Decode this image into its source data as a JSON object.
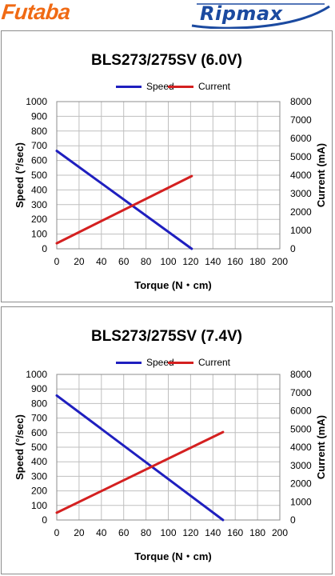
{
  "header": {
    "left_logo_text": "Futaba",
    "right_logo_text": "Ripmax",
    "left_logo_color": "#f06a14",
    "right_logo_color": "#1b4aa0"
  },
  "chart_data": [
    {
      "type": "line",
      "title": "BLS273/275SV (6.0V)",
      "xlabel": "Torque (N・cm)",
      "ylabel": "Speed (°/sec)",
      "y2label": "Current (mA)",
      "xlim": [
        0,
        200
      ],
      "ylim": [
        0,
        1000
      ],
      "y2lim": [
        0,
        8000
      ],
      "xticks": [
        "0",
        "20",
        "40",
        "60",
        "80",
        "100",
        "120",
        "140",
        "160",
        "180",
        "200"
      ],
      "yticks": [
        "0",
        "100",
        "200",
        "300",
        "400",
        "500",
        "600",
        "700",
        "800",
        "900",
        "1000"
      ],
      "y2ticks": [
        "0",
        "1000",
        "2000",
        "3000",
        "4000",
        "5000",
        "6000",
        "7000",
        "8000"
      ],
      "grid": true,
      "legend_position": "top",
      "series": [
        {
          "name": "Speed",
          "axis": "left",
          "color": "#1f1fbf",
          "points": [
            [
              0,
              665
            ],
            [
              121,
              0
            ]
          ]
        },
        {
          "name": "Current",
          "axis": "right",
          "color": "#d42020",
          "points": [
            [
              0,
              300
            ],
            [
              121,
              3950
            ]
          ]
        }
      ]
    },
    {
      "type": "line",
      "title": "BLS273/275SV (7.4V)",
      "xlabel": "Torque (N・cm)",
      "ylabel": "Speed (°/sec)",
      "y2label": "Current (mA)",
      "xlim": [
        0,
        200
      ],
      "ylim": [
        0,
        1000
      ],
      "y2lim": [
        0,
        8000
      ],
      "xticks": [
        "0",
        "20",
        "40",
        "60",
        "80",
        "100",
        "120",
        "140",
        "160",
        "180",
        "200"
      ],
      "yticks": [
        "0",
        "100",
        "200",
        "300",
        "400",
        "500",
        "600",
        "700",
        "800",
        "900",
        "1000"
      ],
      "y2ticks": [
        "0",
        "1000",
        "2000",
        "3000",
        "4000",
        "5000",
        "6000",
        "7000",
        "8000"
      ],
      "grid": true,
      "legend_position": "top",
      "series": [
        {
          "name": "Speed",
          "axis": "left",
          "color": "#1f1fbf",
          "points": [
            [
              0,
              855
            ],
            [
              149,
              0
            ]
          ]
        },
        {
          "name": "Current",
          "axis": "right",
          "color": "#d42020",
          "points": [
            [
              0,
              400
            ],
            [
              149,
              4830
            ]
          ]
        }
      ]
    }
  ]
}
